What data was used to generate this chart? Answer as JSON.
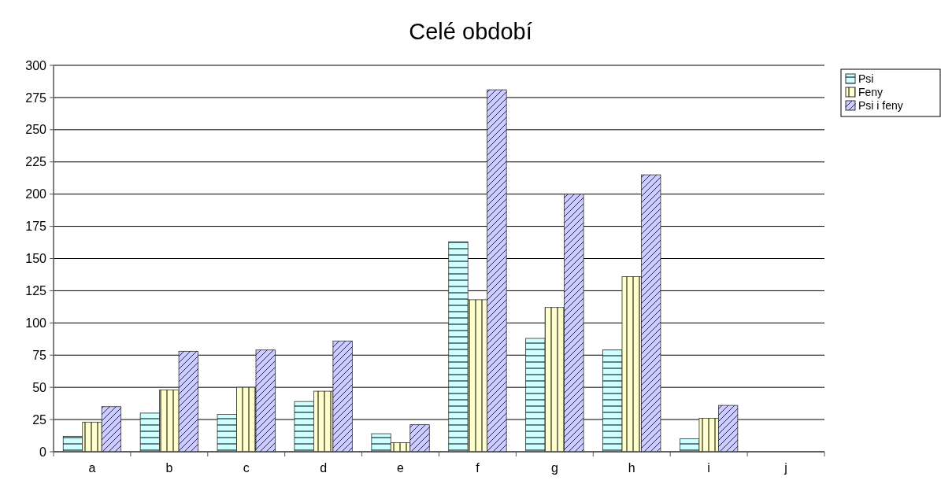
{
  "chart_data": {
    "type": "bar",
    "title": "Celé období",
    "categories": [
      "a",
      "b",
      "c",
      "d",
      "e",
      "f",
      "g",
      "h",
      "i",
      "j"
    ],
    "series": [
      {
        "name": "Psi",
        "color": "#ccffff",
        "values": [
          12,
          30,
          29,
          39,
          14,
          163,
          88,
          79,
          10,
          0
        ]
      },
      {
        "name": "Feny",
        "color": "#ffffcc",
        "values": [
          23,
          48,
          50,
          47,
          7,
          118,
          112,
          136,
          26,
          0
        ]
      },
      {
        "name": "Psi i feny",
        "color": "#ccccff",
        "values": [
          35,
          78,
          79,
          86,
          21,
          281,
          200,
          215,
          36,
          0
        ]
      }
    ],
    "ylim": [
      0,
      300
    ],
    "yticks": [
      0,
      25,
      50,
      75,
      100,
      125,
      150,
      175,
      200,
      225,
      250,
      275,
      300
    ],
    "grid": "y",
    "legend": "top right"
  }
}
